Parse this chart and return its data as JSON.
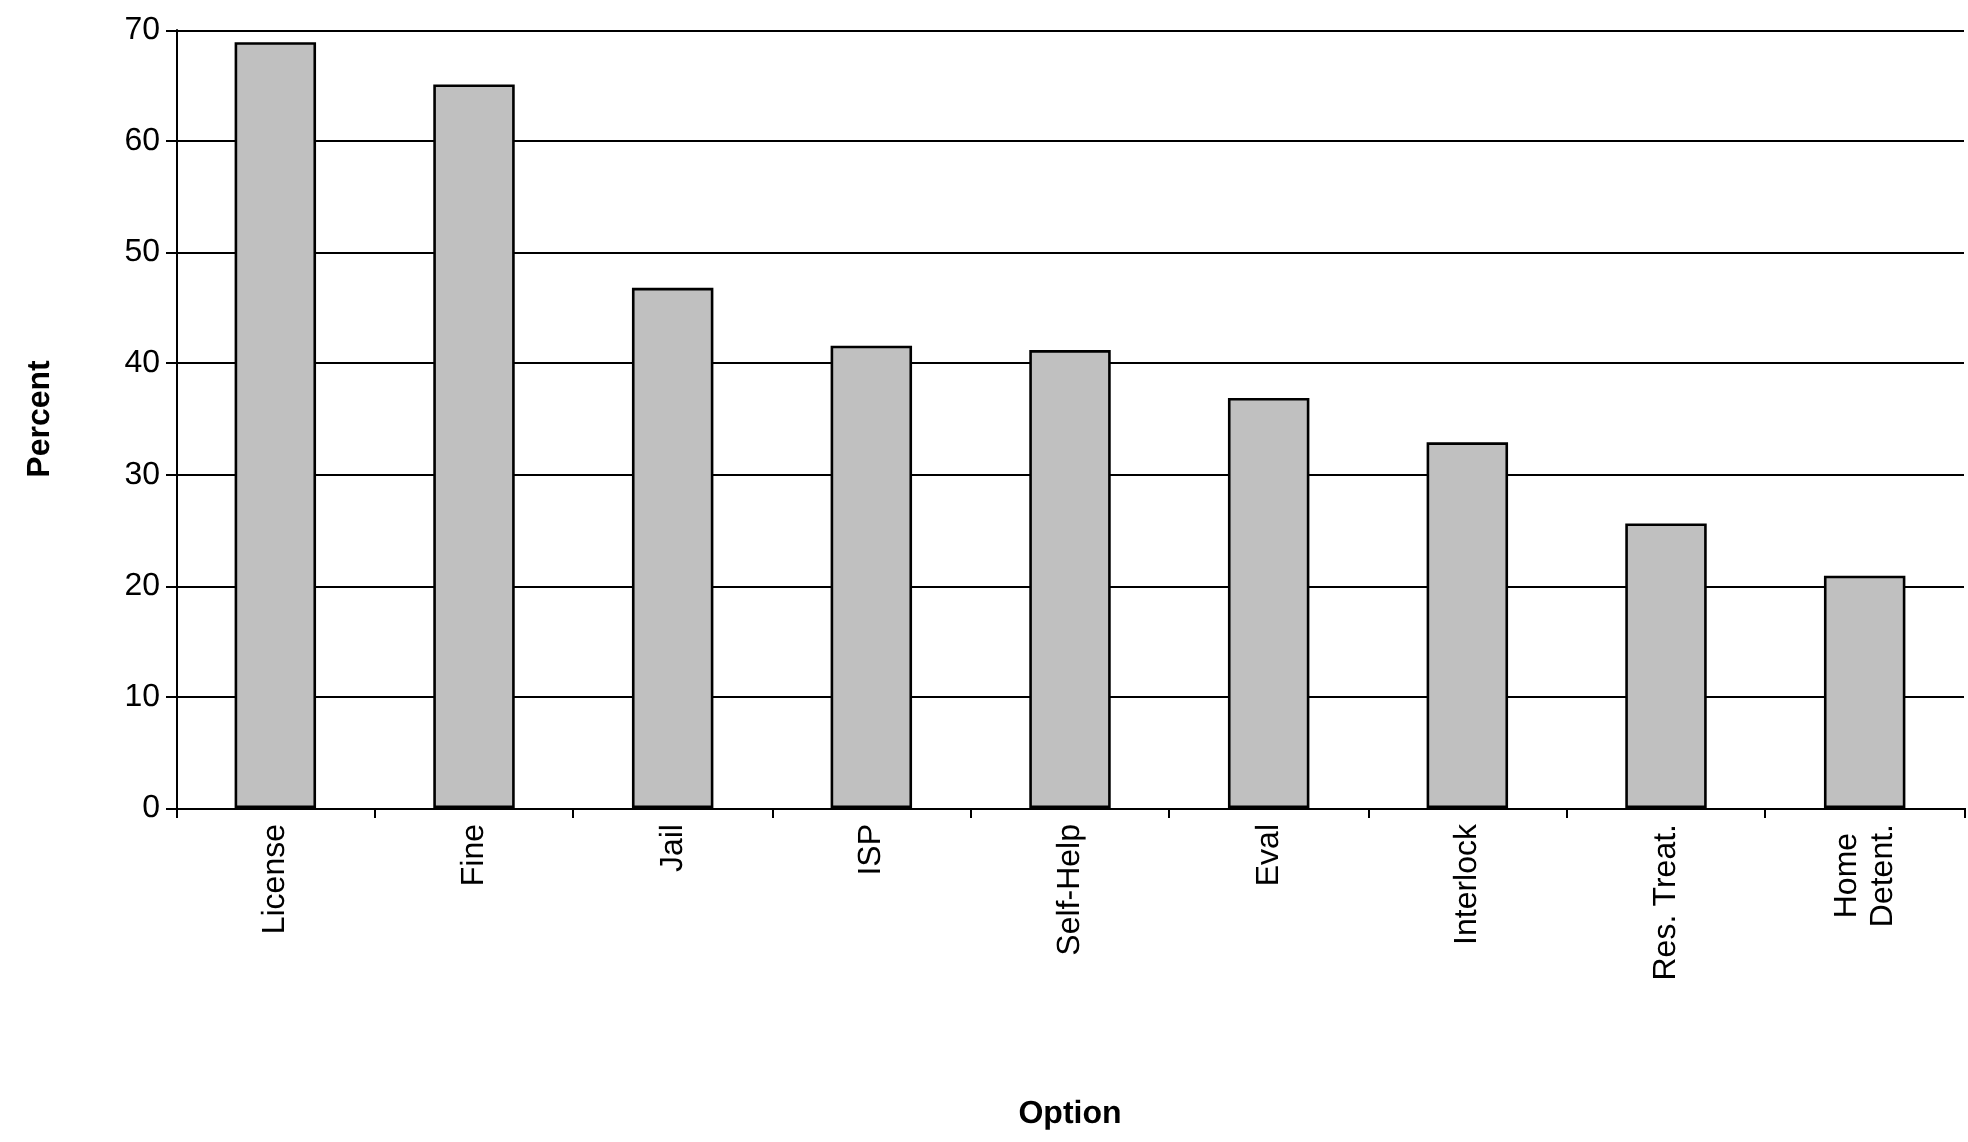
{
  "chart_data": {
    "type": "bar",
    "xlabel": "Option",
    "ylabel": "Percent",
    "categories": [
      "License",
      "Fine",
      "Jail",
      "ISP",
      "Self-Help",
      "Eval",
      "Interlock",
      "Res. Treat.",
      "Home Detent."
    ],
    "values": [
      68.9,
      65.1,
      46.8,
      41.6,
      41.2,
      36.9,
      32.9,
      25.6,
      20.9
    ],
    "color": "#c0c0c0",
    "ylim": [
      0,
      70
    ],
    "yticks": [
      0,
      10,
      20,
      30,
      40,
      50,
      60,
      70
    ],
    "grid": "y"
  }
}
